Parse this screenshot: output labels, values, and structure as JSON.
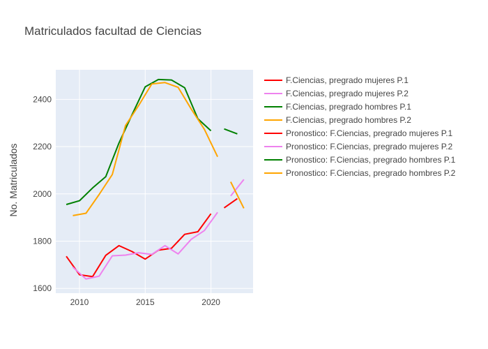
{
  "chart_data": {
    "type": "line",
    "title": "Matriculados facultad de Ciencias",
    "xlabel": "",
    "ylabel": "No. Matriculados",
    "xlim": [
      2008.2,
      2023.2
    ],
    "ylim": [
      1580,
      2525
    ],
    "x_ticks": [
      2010,
      2015,
      2020
    ],
    "y_ticks": [
      1600,
      1800,
      2000,
      2200,
      2400
    ],
    "grid": true,
    "legend_position": "right",
    "series": [
      {
        "name": "F.Ciencias, pregrado mujeres P.1",
        "color": "#ff0000",
        "x": [
          2009,
          2010,
          2011,
          2012,
          2013,
          2014,
          2015,
          2016,
          2017,
          2018,
          2019,
          2020
        ],
        "y": [
          1736,
          1658,
          1650,
          1740,
          1781,
          1756,
          1724,
          1762,
          1770,
          1829,
          1840,
          1916
        ]
      },
      {
        "name": "F.Ciencias, pregrado mujeres P.2",
        "color": "#ee82ee",
        "x": [
          2009.5,
          2010.5,
          2011.5,
          2012.5,
          2013.5,
          2014.5,
          2015.5,
          2016.5,
          2017.5,
          2018.5,
          2019.5,
          2020.5
        ],
        "y": [
          1690,
          1640,
          1652,
          1738,
          1741,
          1751,
          1744,
          1781,
          1746,
          1808,
          1845,
          1922
        ]
      },
      {
        "name": "F.Ciencias, pregrado hombres P.1",
        "color": "#008000",
        "x": [
          2009,
          2010,
          2011,
          2012,
          2013,
          2014,
          2015,
          2016,
          2017,
          2018,
          2019,
          2020
        ],
        "y": [
          1955,
          1971,
          2025,
          2073,
          2215,
          2335,
          2453,
          2484,
          2482,
          2449,
          2318,
          2267
        ]
      },
      {
        "name": "F.Ciencias, pregrado hombres P.2",
        "color": "#ffa500",
        "x": [
          2009.5,
          2010.5,
          2011.5,
          2012.5,
          2013.5,
          2014.5,
          2015.5,
          2016.5,
          2017.5,
          2018.5,
          2019.5,
          2020.5
        ],
        "y": [
          1908,
          1918,
          1998,
          2082,
          2289,
          2374,
          2465,
          2471,
          2451,
          2359,
          2273,
          2157
        ]
      },
      {
        "name": "Pronostico: F.Ciencias, pregrado mujeres P.1",
        "color": "#ff0000",
        "x": [
          2021,
          2022
        ],
        "y": [
          1941,
          1980
        ]
      },
      {
        "name": "Pronostico: F.Ciencias, pregrado mujeres P.2",
        "color": "#ee82ee",
        "x": [
          2021.5,
          2022.5
        ],
        "y": [
          1991,
          2061
        ]
      },
      {
        "name": "Pronostico: F.Ciencias, pregrado hombres P.1",
        "color": "#008000",
        "x": [
          2021,
          2022
        ],
        "y": [
          2275,
          2254
        ]
      },
      {
        "name": "Pronostico: F.Ciencias, pregrado hombres P.2",
        "color": "#ffa500",
        "x": [
          2021.5,
          2022.5
        ],
        "y": [
          2051,
          1939
        ]
      }
    ]
  },
  "colors": {
    "plot_background": "#e5ecf6",
    "grid": "#ffffff",
    "text": "#444444"
  }
}
